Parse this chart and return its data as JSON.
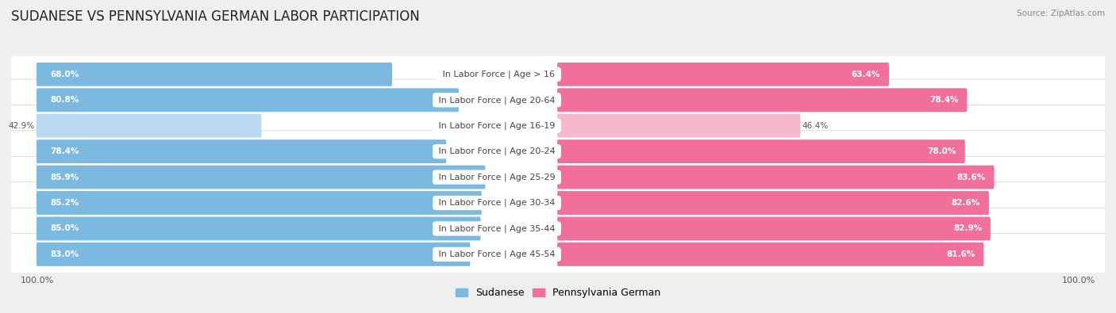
{
  "title": "SUDANESE VS PENNSYLVANIA GERMAN LABOR PARTICIPATION",
  "source": "Source: ZipAtlas.com",
  "categories": [
    "In Labor Force | Age > 16",
    "In Labor Force | Age 20-64",
    "In Labor Force | Age 16-19",
    "In Labor Force | Age 20-24",
    "In Labor Force | Age 25-29",
    "In Labor Force | Age 30-34",
    "In Labor Force | Age 35-44",
    "In Labor Force | Age 45-54"
  ],
  "sudanese_values": [
    68.0,
    80.8,
    42.9,
    78.4,
    85.9,
    85.2,
    85.0,
    83.0
  ],
  "penn_german_values": [
    63.4,
    78.4,
    46.4,
    78.0,
    83.6,
    82.6,
    82.9,
    81.6
  ],
  "sudanese_color": "#7cb9e0",
  "sudanese_color_light": "#b8d9f0",
  "penn_german_color": "#f07099",
  "penn_german_color_light": "#f5b8cc",
  "row_bg_color": "#e8e8e8",
  "bar_bg_color": "#f5f5f5",
  "bg_color": "#efefef",
  "max_value": 100.0,
  "title_fontsize": 12,
  "label_fontsize": 8,
  "value_fontsize": 7.5,
  "legend_fontsize": 9,
  "axis_label_fontsize": 8,
  "legend_label_sudanese": "Sudanese",
  "legend_label_penn": "Pennsylvania German"
}
